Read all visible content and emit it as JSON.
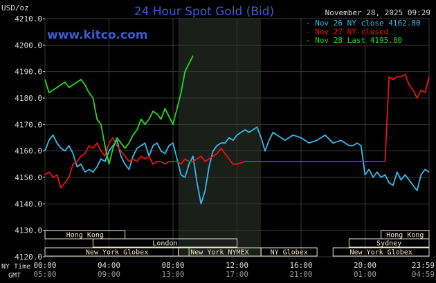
{
  "header": {
    "unit": "USD/oz",
    "title": "24 Hour Spot Gold (Bid)",
    "timestamp": "November 28, 2025 09:29",
    "watermark": "www.kitco.com"
  },
  "colors": {
    "background": "#000000",
    "grid": "#3a3a3a",
    "title": "#3a5bd8",
    "nov26": "#33bbee",
    "nov27": "#ee1111",
    "nov28": "#22dd22",
    "session_fill": "#1a1f1a",
    "session_box": "#ece6c8",
    "axis_text": "#dcdcdc"
  },
  "legend": [
    {
      "prefix": "-",
      "text": "Nov 26 NY close 4162.80",
      "color": "#33bbee"
    },
    {
      "prefix": "-",
      "text": "Nov 27 NY closed",
      "color": "#ee1111"
    },
    {
      "prefix": "-",
      "text": "Nov 28 Last 4195.80",
      "color": "#22dd22"
    }
  ],
  "sessions": [
    {
      "label": "Hong Kong",
      "row": 0,
      "start": -2,
      "end": 5
    },
    {
      "label": "Hong Kong",
      "row": 0,
      "start": 21,
      "end": 26
    },
    {
      "label": "London",
      "row": 1,
      "start": 3,
      "end": 12
    },
    {
      "label": "Sydney",
      "row": 1,
      "start": 19,
      "end": 26
    },
    {
      "label": "New York Globex",
      "row": 2,
      "start": 0,
      "end": 9
    },
    {
      "label": "New York NYMEX",
      "row": 2,
      "start": 8.33,
      "end": 13.5
    },
    {
      "label": "NY Globex",
      "row": 2,
      "start": 13.5,
      "end": 17
    },
    {
      "label": "New York Globex",
      "row": 2,
      "start": 18,
      "end": 26
    }
  ],
  "nymex_band": {
    "start": 8.33,
    "end": 13.5
  },
  "time_axis": {
    "ny_label": "NY Time",
    "gmt_label": "GMT",
    "ticks": [
      {
        "hour": 0,
        "ny": "00:00",
        "gmt": "05:00"
      },
      {
        "hour": 4,
        "ny": "04:00",
        "gmt": "09:00"
      },
      {
        "hour": 8,
        "ny": "08:00",
        "gmt": "13:00"
      },
      {
        "hour": 12,
        "ny": "12:00",
        "gmt": "17:00"
      },
      {
        "hour": 16,
        "ny": "16:00",
        "gmt": "21:00"
      },
      {
        "hour": 20,
        "ny": "20:00",
        "gmt": "01:00"
      },
      {
        "hour": 23.98,
        "ny": "23:59",
        "gmt": "04:59"
      }
    ]
  },
  "chart_data": {
    "type": "line",
    "title": "24 Hour Spot Gold (Bid)",
    "ylabel": "USD/oz",
    "xlabel": "",
    "ylim": [
      4120,
      4210
    ],
    "xlim": [
      0,
      24
    ],
    "yticks": [
      "4120.0",
      "4130.0",
      "4140.0",
      "4150.0",
      "4160.0",
      "4170.0",
      "4180.0",
      "4190.0",
      "4200.0",
      "4210.0"
    ],
    "grid": true,
    "legend_position": "top-right",
    "series": [
      {
        "name": "Nov 26 NY close 4162.80",
        "color": "#33bbee",
        "x": [
          0,
          0.25,
          0.5,
          0.75,
          1.0,
          1.25,
          1.5,
          1.75,
          2.0,
          2.25,
          2.5,
          2.75,
          3.0,
          3.25,
          3.5,
          3.75,
          4.0,
          4.25,
          4.5,
          4.75,
          5.0,
          5.25,
          5.5,
          5.75,
          6.0,
          6.25,
          6.5,
          6.75,
          7.0,
          7.25,
          7.5,
          7.75,
          8.0,
          8.25,
          8.5,
          8.75,
          9.0,
          9.25,
          9.5,
          9.75,
          10.0,
          10.25,
          10.5,
          10.75,
          11.0,
          11.25,
          11.5,
          11.75,
          12.0,
          12.25,
          12.5,
          12.75,
          13.0,
          13.25,
          13.5,
          13.75,
          14.0,
          14.25,
          14.5,
          15.0,
          15.5,
          16.0,
          16.5,
          17.0,
          17.5,
          18.0,
          18.5,
          19.0,
          19.25,
          19.5,
          19.75,
          20.0,
          20.25,
          20.5,
          20.75,
          21.0,
          21.25,
          21.5,
          21.75,
          22.0,
          22.25,
          22.5,
          22.75,
          23.0,
          23.25,
          23.5,
          23.75,
          24.0
        ],
        "values": [
          4160,
          4164,
          4166,
          4163,
          4161,
          4160,
          4162,
          4159,
          4154,
          4155,
          4152,
          4153,
          4152,
          4154,
          4157,
          4156,
          4160,
          4162,
          4164,
          4158,
          4155,
          4153,
          4158,
          4161,
          4162,
          4163,
          4158,
          4162,
          4163,
          4160,
          4159,
          4162,
          4163,
          4157,
          4151,
          4150,
          4155,
          4158,
          4148,
          4140,
          4145,
          4154,
          4160,
          4162,
          4163,
          4163,
          4165,
          4164,
          4166,
          4167,
          4168,
          4167,
          4168,
          4169,
          4165,
          4160,
          4164,
          4167,
          4166,
          4164,
          4166,
          4165,
          4163,
          4164,
          4166,
          4163,
          4164,
          4162,
          4162,
          4163,
          4162,
          4151,
          4153,
          4150,
          4152,
          4150,
          4151,
          4148,
          4147,
          4152,
          4149,
          4151,
          4149,
          4147,
          4145,
          4151,
          4153,
          4152
        ]
      },
      {
        "name": "Nov 27 NY closed",
        "color": "#ee1111",
        "x": [
          0,
          0.25,
          0.5,
          0.75,
          1.0,
          1.25,
          1.5,
          1.75,
          2.0,
          2.25,
          2.5,
          2.75,
          3.0,
          3.25,
          3.5,
          3.75,
          4.0,
          4.25,
          4.5,
          4.75,
          5.0,
          5.25,
          5.5,
          5.75,
          6.0,
          6.25,
          6.5,
          6.75,
          7.0,
          7.25,
          7.5,
          7.75,
          8.0,
          8.25,
          8.5,
          8.75,
          9.0,
          9.25,
          9.5,
          9.75,
          10.0,
          10.25,
          10.5,
          10.75,
          11.0,
          11.25,
          11.5,
          11.75,
          12.0,
          12.5,
          13.0,
          14.0,
          15.0,
          16.0,
          17.0,
          18.0,
          19.0,
          20.0,
          20.5,
          21.0,
          21.25,
          21.5,
          21.75,
          22.0,
          22.25,
          22.5,
          22.75,
          23.0,
          23.25,
          23.5,
          23.75,
          24.0
        ],
        "values": [
          4151,
          4152,
          4150,
          4151,
          4146,
          4148,
          4150,
          4155,
          4156,
          4158,
          4159,
          4162,
          4161,
          4163,
          4160,
          4158,
          4163,
          4165,
          4162,
          4160,
          4158,
          4156,
          4157,
          4156,
          4158,
          4157,
          4158,
          4155,
          4156,
          4156,
          4155,
          4156,
          4156,
          4156,
          4155,
          4157,
          4156,
          4156,
          4157,
          4158,
          4156,
          4157,
          4158,
          4159,
          4161,
          4159,
          4157,
          4155,
          4155,
          4156,
          4156,
          4156,
          4156,
          4156,
          4156,
          4156,
          4156,
          4156,
          4156,
          4156,
          4156,
          4188,
          4187,
          4188,
          4188,
          4189,
          4185,
          4183,
          4180,
          4183,
          4182,
          4188
        ]
      },
      {
        "name": "Nov 28 Last 4195.80",
        "color": "#22dd22",
        "x": [
          0,
          0.25,
          0.5,
          0.75,
          1.0,
          1.25,
          1.5,
          1.75,
          2.0,
          2.25,
          2.5,
          2.75,
          3.0,
          3.25,
          3.5,
          3.75,
          4.0,
          4.25,
          4.5,
          4.75,
          5.0,
          5.25,
          5.5,
          5.75,
          6.0,
          6.25,
          6.5,
          6.75,
          7.0,
          7.25,
          7.5,
          7.75,
          8.0,
          8.25,
          8.5,
          8.75,
          9.0,
          9.25
        ],
        "values": [
          4187,
          4182,
          4183,
          4184,
          4185,
          4186,
          4184,
          4185,
          4186,
          4187,
          4185,
          4182,
          4180,
          4172,
          4170,
          4162,
          4155,
          4161,
          4165,
          4163,
          4161,
          4163,
          4166,
          4168,
          4172,
          4170,
          4172,
          4175,
          4174,
          4172,
          4176,
          4173,
          4170,
          4176,
          4182,
          4190,
          4193,
          4196
        ]
      }
    ]
  }
}
